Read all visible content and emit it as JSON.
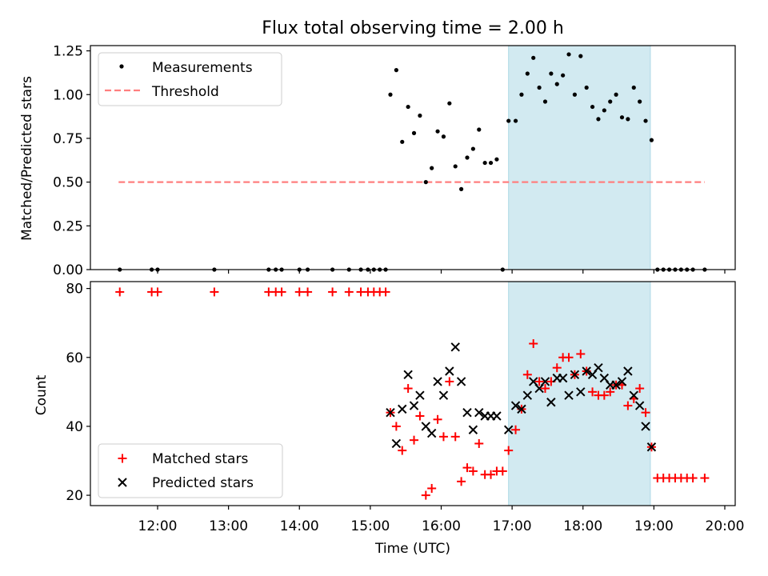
{
  "title": "Flux total observing time = 2.00 h",
  "xlabel": "Time (UTC)",
  "x_ticks": [
    {
      "t": 12.0,
      "label": "12:00"
    },
    {
      "t": 13.0,
      "label": "13:00"
    },
    {
      "t": 14.0,
      "label": "14:00"
    },
    {
      "t": 15.0,
      "label": "15:00"
    },
    {
      "t": 16.0,
      "label": "16:00"
    },
    {
      "t": 17.0,
      "label": "17:00"
    },
    {
      "t": 18.0,
      "label": "18:00"
    },
    {
      "t": 19.0,
      "label": "19:00"
    },
    {
      "t": 20.0,
      "label": "20:00"
    }
  ],
  "shaded_interval": {
    "start": "16:57",
    "end": "18:57",
    "color": "#add8e6"
  },
  "chart_data": [
    {
      "type": "scatter",
      "name": "ratio",
      "xlabel": "",
      "ylabel": "Matched/Predicted stars",
      "ylim": [
        0.0,
        1.28
      ],
      "y_ticks": [
        "0.00",
        "0.25",
        "0.50",
        "0.75",
        "1.00",
        "1.25"
      ],
      "grid": false,
      "legend": "top-left",
      "legend_entries": [
        {
          "label": "Measurements",
          "color": "#000000",
          "marker": "dot"
        },
        {
          "label": "Threshold",
          "color": "#ff7f7f",
          "marker": "dashed-line"
        }
      ],
      "threshold": {
        "value": 0.5,
        "x_start": "11:27",
        "x_end": "19:43"
      },
      "points": [
        [
          "11:28",
          0
        ],
        [
          "11:55",
          0
        ],
        [
          "12:00",
          0
        ],
        [
          "12:48",
          0
        ],
        [
          "13:34",
          0
        ],
        [
          "13:40",
          0
        ],
        [
          "13:45",
          0
        ],
        [
          "14:00",
          0
        ],
        [
          "14:07",
          0
        ],
        [
          "14:28",
          0
        ],
        [
          "14:42",
          0
        ],
        [
          "14:52",
          0
        ],
        [
          "14:58",
          0
        ],
        [
          "15:03",
          0
        ],
        [
          "15:08",
          0
        ],
        [
          "15:13",
          0
        ],
        [
          "15:17",
          1.0
        ],
        [
          "15:22",
          1.14
        ],
        [
          "15:27",
          0.73
        ],
        [
          "15:32",
          0.93
        ],
        [
          "15:37",
          0.78
        ],
        [
          "15:42",
          0.88
        ],
        [
          "15:47",
          0.5
        ],
        [
          "15:52",
          0.58
        ],
        [
          "15:57",
          0.79
        ],
        [
          "16:02",
          0.76
        ],
        [
          "16:07",
          0.95
        ],
        [
          "16:12",
          0.59
        ],
        [
          "16:17",
          0.46
        ],
        [
          "16:22",
          0.64
        ],
        [
          "16:27",
          0.69
        ],
        [
          "16:32",
          0.8
        ],
        [
          "16:37",
          0.61
        ],
        [
          "16:42",
          0.61
        ],
        [
          "16:47",
          0.63
        ],
        [
          "16:52",
          0
        ],
        [
          "16:57",
          0.85
        ],
        [
          "17:03",
          0.85
        ],
        [
          "17:08",
          1.0
        ],
        [
          "17:13",
          1.12
        ],
        [
          "17:18",
          1.21
        ],
        [
          "17:23",
          1.04
        ],
        [
          "17:28",
          0.96
        ],
        [
          "17:33",
          1.12
        ],
        [
          "17:38",
          1.06
        ],
        [
          "17:43",
          1.11
        ],
        [
          "17:48",
          1.23
        ],
        [
          "17:53",
          1.0
        ],
        [
          "17:58",
          1.22
        ],
        [
          "18:03",
          1.04
        ],
        [
          "18:08",
          0.93
        ],
        [
          "18:13",
          0.86
        ],
        [
          "18:18",
          0.91
        ],
        [
          "18:23",
          0.96
        ],
        [
          "18:28",
          1.0
        ],
        [
          "18:33",
          0.87
        ],
        [
          "18:38",
          0.86
        ],
        [
          "18:43",
          1.04
        ],
        [
          "18:48",
          0.96
        ],
        [
          "18:53",
          0.85
        ],
        [
          "18:58",
          0.74
        ],
        [
          "19:03",
          0
        ],
        [
          "19:08",
          0
        ],
        [
          "19:13",
          0
        ],
        [
          "19:18",
          0
        ],
        [
          "19:23",
          0
        ],
        [
          "19:28",
          0
        ],
        [
          "19:33",
          0
        ],
        [
          "19:43",
          0
        ]
      ]
    },
    {
      "type": "scatter",
      "name": "counts",
      "xlabel": "Time (UTC)",
      "ylabel": "Count",
      "ylim": [
        17,
        82
      ],
      "y_ticks": [
        "20",
        "40",
        "60",
        "80"
      ],
      "grid": false,
      "legend": "bottom-left",
      "series": [
        {
          "name": "Matched stars",
          "marker": "plus",
          "color": "#ff0000",
          "points": [
            [
              "11:28",
              79
            ],
            [
              "11:55",
              79
            ],
            [
              "12:00",
              79
            ],
            [
              "12:48",
              79
            ],
            [
              "13:34",
              79
            ],
            [
              "13:40",
              79
            ],
            [
              "13:45",
              79
            ],
            [
              "14:00",
              79
            ],
            [
              "14:07",
              79
            ],
            [
              "14:28",
              79
            ],
            [
              "14:42",
              79
            ],
            [
              "14:52",
              79
            ],
            [
              "14:58",
              79
            ],
            [
              "15:03",
              79
            ],
            [
              "15:08",
              79
            ],
            [
              "15:13",
              79
            ],
            [
              "15:17",
              44
            ],
            [
              "15:22",
              40
            ],
            [
              "15:27",
              33
            ],
            [
              "15:32",
              51
            ],
            [
              "15:37",
              36
            ],
            [
              "15:42",
              43
            ],
            [
              "15:47",
              20
            ],
            [
              "15:52",
              22
            ],
            [
              "15:57",
              42
            ],
            [
              "16:02",
              37
            ],
            [
              "16:07",
              53
            ],
            [
              "16:12",
              37
            ],
            [
              "16:17",
              24
            ],
            [
              "16:22",
              28
            ],
            [
              "16:27",
              27
            ],
            [
              "16:32",
              35
            ],
            [
              "16:37",
              26
            ],
            [
              "16:42",
              26
            ],
            [
              "16:47",
              27
            ],
            [
              "16:52",
              27
            ],
            [
              "16:57",
              33
            ],
            [
              "17:03",
              39
            ],
            [
              "17:08",
              45
            ],
            [
              "17:13",
              55
            ],
            [
              "17:18",
              64
            ],
            [
              "17:23",
              53
            ],
            [
              "17:28",
              51
            ],
            [
              "17:33",
              53
            ],
            [
              "17:38",
              57
            ],
            [
              "17:43",
              60
            ],
            [
              "17:48",
              60
            ],
            [
              "17:53",
              55
            ],
            [
              "17:58",
              61
            ],
            [
              "18:03",
              56
            ],
            [
              "18:08",
              50
            ],
            [
              "18:13",
              49
            ],
            [
              "18:18",
              49
            ],
            [
              "18:23",
              50
            ],
            [
              "18:28",
              52
            ],
            [
              "18:33",
              52
            ],
            [
              "18:38",
              46
            ],
            [
              "18:43",
              48
            ],
            [
              "18:48",
              51
            ],
            [
              "18:53",
              44
            ],
            [
              "18:58",
              34
            ],
            [
              "19:03",
              25
            ],
            [
              "19:08",
              25
            ],
            [
              "19:13",
              25
            ],
            [
              "19:18",
              25
            ],
            [
              "19:23",
              25
            ],
            [
              "19:28",
              25
            ],
            [
              "19:33",
              25
            ],
            [
              "19:43",
              25
            ]
          ]
        },
        {
          "name": "Predicted stars",
          "marker": "x",
          "color": "#000000",
          "points": [
            [
              "15:17",
              44
            ],
            [
              "15:22",
              35
            ],
            [
              "15:27",
              45
            ],
            [
              "15:32",
              55
            ],
            [
              "15:37",
              46
            ],
            [
              "15:42",
              49
            ],
            [
              "15:47",
              40
            ],
            [
              "15:52",
              38
            ],
            [
              "15:57",
              53
            ],
            [
              "16:02",
              49
            ],
            [
              "16:07",
              56
            ],
            [
              "16:12",
              63
            ],
            [
              "16:17",
              53
            ],
            [
              "16:22",
              44
            ],
            [
              "16:27",
              39
            ],
            [
              "16:32",
              44
            ],
            [
              "16:37",
              43
            ],
            [
              "16:42",
              43
            ],
            [
              "16:47",
              43
            ],
            [
              "16:57",
              39
            ],
            [
              "17:03",
              46
            ],
            [
              "17:08",
              45
            ],
            [
              "17:13",
              49
            ],
            [
              "17:18",
              53
            ],
            [
              "17:23",
              51
            ],
            [
              "17:28",
              53
            ],
            [
              "17:33",
              47
            ],
            [
              "17:38",
              54
            ],
            [
              "17:43",
              54
            ],
            [
              "17:48",
              49
            ],
            [
              "17:53",
              55
            ],
            [
              "17:58",
              50
            ],
            [
              "18:03",
              56
            ],
            [
              "18:08",
              55
            ],
            [
              "18:13",
              57
            ],
            [
              "18:18",
              54
            ],
            [
              "18:23",
              52
            ],
            [
              "18:28",
              52
            ],
            [
              "18:33",
              53
            ],
            [
              "18:38",
              56
            ],
            [
              "18:43",
              49
            ],
            [
              "18:48",
              46
            ],
            [
              "18:53",
              40
            ],
            [
              "18:58",
              34
            ]
          ]
        }
      ]
    }
  ]
}
